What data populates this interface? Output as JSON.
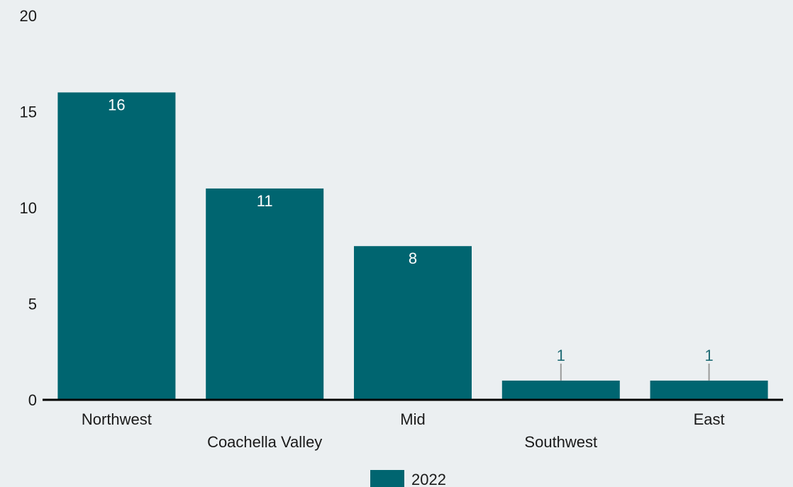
{
  "chart_data": {
    "type": "bar",
    "categories": [
      "Northwest",
      "Coachella Valley",
      "Mid",
      "Southwest",
      "East"
    ],
    "series": [
      {
        "name": "2022",
        "values": [
          16,
          11,
          8,
          1,
          1
        ]
      }
    ],
    "ylim": [
      0,
      20
    ],
    "yticks": [
      0,
      5,
      10,
      15,
      20
    ],
    "title": "",
    "xlabel": "",
    "ylabel": "",
    "grid": false,
    "legend_position": "bottom",
    "colors": {
      "bar": "#006570",
      "axis": "#000000",
      "leader": "#9a9a9a",
      "outside_label": "#1f6b74"
    }
  }
}
